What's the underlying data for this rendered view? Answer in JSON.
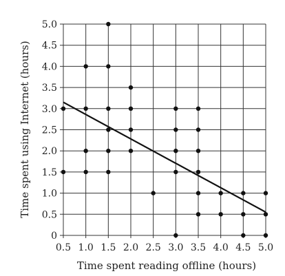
{
  "chart_data": {
    "type": "scatter",
    "title": "",
    "xlabel": "Time spent reading offline (hours)",
    "ylabel": "Time spent using Internet (hours)",
    "xlim": [
      0.5,
      5.0
    ],
    "ylim": [
      0,
      5.0
    ],
    "x_ticks": [
      "0.5",
      "1.0",
      "1.5",
      "2.0",
      "2.5",
      "3.0",
      "3.5",
      "4.0",
      "4.5",
      "5.0"
    ],
    "y_ticks": [
      "0",
      "0.5",
      "1.0",
      "1.5",
      "2.0",
      "2.5",
      "3.0",
      "3.5",
      "4.0",
      "4.5",
      "5.0"
    ],
    "grid": true,
    "points": [
      {
        "x": 0.5,
        "y": 3.0
      },
      {
        "x": 0.5,
        "y": 1.5
      },
      {
        "x": 1.0,
        "y": 4.0
      },
      {
        "x": 1.0,
        "y": 3.0
      },
      {
        "x": 1.0,
        "y": 2.0
      },
      {
        "x": 1.0,
        "y": 1.5
      },
      {
        "x": 1.5,
        "y": 5.0
      },
      {
        "x": 1.5,
        "y": 4.0
      },
      {
        "x": 1.5,
        "y": 3.0
      },
      {
        "x": 1.5,
        "y": 2.5
      },
      {
        "x": 1.5,
        "y": 2.0
      },
      {
        "x": 1.5,
        "y": 1.5
      },
      {
        "x": 2.0,
        "y": 3.5
      },
      {
        "x": 2.0,
        "y": 3.0
      },
      {
        "x": 2.0,
        "y": 2.5
      },
      {
        "x": 2.0,
        "y": 2.0
      },
      {
        "x": 2.5,
        "y": 1.0
      },
      {
        "x": 3.0,
        "y": 3.0
      },
      {
        "x": 3.0,
        "y": 2.5
      },
      {
        "x": 3.0,
        "y": 2.0
      },
      {
        "x": 3.0,
        "y": 1.5
      },
      {
        "x": 3.0,
        "y": 0.0
      },
      {
        "x": 3.5,
        "y": 3.0
      },
      {
        "x": 3.5,
        "y": 2.5
      },
      {
        "x": 3.5,
        "y": 2.0
      },
      {
        "x": 3.5,
        "y": 1.5
      },
      {
        "x": 3.5,
        "y": 1.0
      },
      {
        "x": 3.5,
        "y": 0.5
      },
      {
        "x": 4.0,
        "y": 1.0
      },
      {
        "x": 4.0,
        "y": 0.5
      },
      {
        "x": 4.5,
        "y": 1.0
      },
      {
        "x": 4.5,
        "y": 0.5
      },
      {
        "x": 4.5,
        "y": 0.0
      },
      {
        "x": 5.0,
        "y": 1.0
      },
      {
        "x": 5.0,
        "y": 0.5
      },
      {
        "x": 5.0,
        "y": 0.0
      }
    ],
    "fit_line": {
      "x": [
        0.5,
        5.0
      ],
      "y": [
        3.15,
        0.55
      ]
    }
  }
}
